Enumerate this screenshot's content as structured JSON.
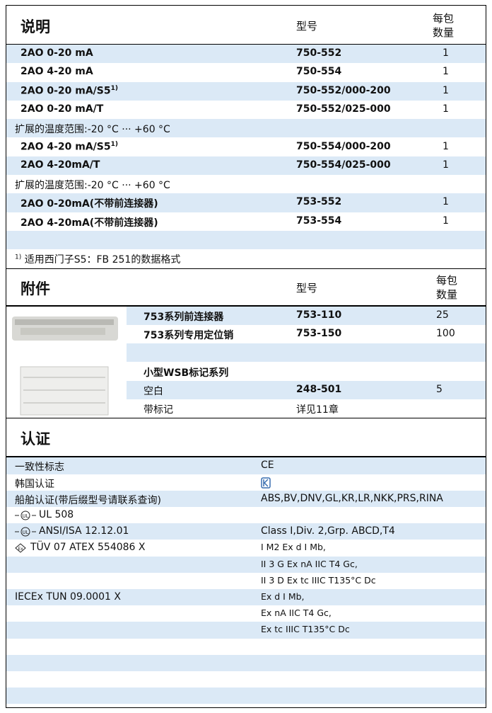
{
  "products": {
    "header": {
      "title": "说明",
      "model": "型号",
      "qty": [
        "每包",
        "数量"
      ]
    },
    "rows": [
      {
        "desc": "2AO 0-20 mA",
        "model": "750-552",
        "qty": 1
      },
      {
        "desc": "2AO 4-20 mA",
        "model": "750-554",
        "qty": 1
      },
      {
        "desc": "2AO 0-20 mA/S5",
        "note": "1)",
        "model": "750-552/000-200",
        "qty": 1
      },
      {
        "desc": "2AO 0-20 mA/T",
        "model": "750-552/025-000",
        "qty": 1
      },
      {
        "text": "扩展的温度范围:-20 °C ··· +60 °C"
      },
      {
        "desc": "2AO 4-20 mA/S5",
        "note": "1)",
        "model": "750-554/000-200",
        "qty": 1
      },
      {
        "desc": "2AO 4-20mA/T",
        "model": "750-554/025-000",
        "qty": 1
      },
      {
        "text": "扩展的温度范围:-20 °C ··· +60 °C"
      },
      {
        "desc": "2AO 0-20mA(不带前连接器)",
        "model": "753-552",
        "qty": 1
      },
      {
        "desc": "2AO 4-20mA(不带前连接器)",
        "model": "753-554",
        "qty": 1
      },
      null
    ],
    "footnote": {
      "mark": "1)",
      "text": "适用西门子S5：FB 251的数据格式"
    }
  },
  "accessories": {
    "header": {
      "title": "附件",
      "model": "型号",
      "qty": [
        "每包",
        "数量"
      ]
    },
    "rows": [
      {
        "desc": "753系列前连接器",
        "model": "753-110",
        "qty": 25
      },
      {
        "desc": "753系列专用定位销",
        "model": "753-150",
        "qty": 100
      },
      null,
      {
        "group": "小型WSB标记系列"
      },
      {
        "desc": "空白",
        "model": "248-501",
        "qty": 5
      },
      {
        "desc": "带标记",
        "model": "详见11章"
      }
    ]
  },
  "certifications": {
    "header": {
      "title": "认证"
    },
    "rows": [
      {
        "label": "一致性标志",
        "value": "CE"
      },
      {
        "label": "韩国认证"
      },
      {
        "label": "船舶认证(带后缀型号请联系查询)",
        "value": "ABS,BV,DNV,GL,KR,LR,NKK,PRS,RINA"
      },
      {
        "label": "UL 508"
      },
      {
        "label": "ANSI/ISA 12.12.01",
        "value": "Class I,Div. 2,Grp. ABCD,T4"
      },
      {
        "label": "TÜV 07 ATEX 554086 X",
        "value": "I M2 Ex d I Mb,"
      },
      {
        "value": "II 3 G Ex nA IIC T4 Gc,"
      },
      {
        "value": "II 3 D Ex tc IIIC T135°C Dc"
      },
      {
        "label": "IECEx TUN 09.0001 X",
        "value": "Ex d I Mb,"
      },
      {
        "value": "Ex nA IIC T4 Gc,"
      },
      {
        "value": "Ex tc IIIC T135°C Dc"
      },
      null,
      null,
      null,
      null
    ]
  }
}
